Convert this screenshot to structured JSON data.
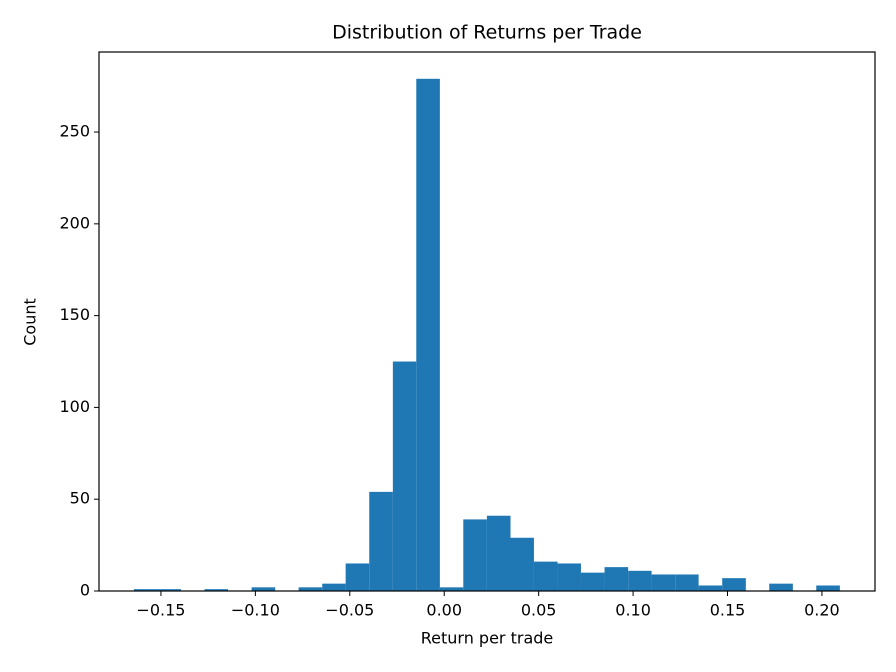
{
  "chart_data": {
    "type": "histogram",
    "title": "Distribution of Returns per Trade",
    "x_label": "Return per trade",
    "y_label": "Count",
    "color": "#1f77b4",
    "bins": [
      -0.1643,
      -0.1518,
      -0.1394,
      -0.1269,
      -0.1145,
      -0.102,
      -0.0895,
      -0.0771,
      -0.0646,
      -0.0522,
      -0.0397,
      -0.0272,
      -0.0148,
      -0.0023,
      0.0101,
      0.0226,
      0.0351,
      0.0475,
      0.06,
      0.0724,
      0.0849,
      0.0974,
      0.1098,
      0.1223,
      0.1347,
      0.1472,
      0.1597,
      0.1721,
      0.1846,
      0.197,
      0.2095
    ],
    "values": [
      1,
      1,
      0,
      1,
      0,
      2,
      0,
      2,
      4,
      15,
      54,
      125,
      279,
      2,
      39,
      41,
      29,
      16,
      15,
      10,
      13,
      11,
      9,
      9,
      3,
      7,
      0,
      4,
      0,
      3
    ],
    "xlim": [
      -0.1828,
      0.2281
    ],
    "ylim": [
      0,
      293.6
    ],
    "xticks": [
      {
        "value": -0.15,
        "label": "−0.15"
      },
      {
        "value": -0.1,
        "label": "−0.10"
      },
      {
        "value": -0.05,
        "label": "−0.05"
      },
      {
        "value": 0,
        "label": "0.00"
      },
      0.05,
      {
        "value": 0.1,
        "label": "0.10"
      },
      0.15,
      {
        "value": 0.2,
        "label": "0.20"
      }
    ],
    "yticks": [
      0,
      50,
      100,
      150,
      200,
      250
    ]
  }
}
